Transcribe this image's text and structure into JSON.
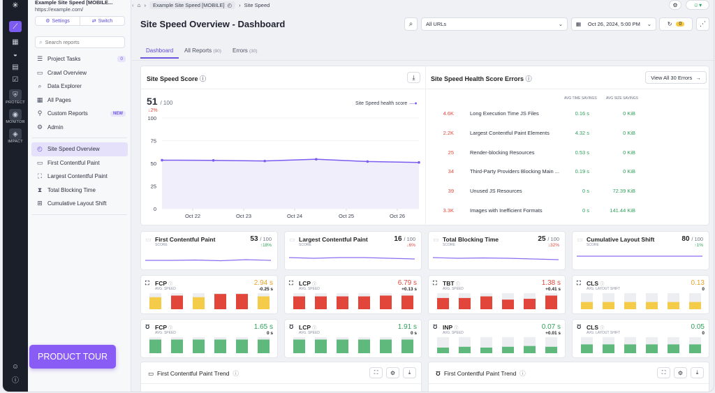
{
  "project": {
    "name": "Example Site Speed [MOBILE...",
    "url": "https://example.com/",
    "settings": "Settings",
    "switch": "Switch"
  },
  "rail": {
    "items": [
      {
        "label": "PROTECT"
      },
      {
        "label": "MONITOR"
      },
      {
        "label": "IMPACT"
      }
    ]
  },
  "search": {
    "placeholder": "Search reports"
  },
  "nav": {
    "project_tasks": "Project Tasks",
    "project_tasks_count": "0",
    "crawl_overview": "Crawl Overview",
    "data_explorer": "Data Explorer",
    "all_pages": "All Pages",
    "custom_reports": "Custom Reports",
    "custom_badge": "NEW",
    "admin": "Admin",
    "site_speed_overview": "Site Speed Overview",
    "fcp": "First Contentful Paint",
    "lcp": "Largest Contentful Paint",
    "tbt": "Total Blocking Time",
    "cls": "Cumulative Layout Shift"
  },
  "product_tour": "PRODUCT TOUR",
  "breadcrumb": {
    "b1": "Example Site Speed [MOBILE]",
    "b2": "Site Speed"
  },
  "header": {
    "title": "Site Speed Overview - Dashboard",
    "url_filter": "All URLs",
    "date": "Oct 26, 2024, 5:00 PM",
    "badge": "0"
  },
  "tabs": {
    "dashboard": "Dashboard",
    "all_reports": "All Reports",
    "all_reports_count": "(90)",
    "errors": "Errors",
    "errors_count": "(30)"
  },
  "score_panel": {
    "title": "Site Speed Score",
    "value": "51",
    "max": "/ 100",
    "delta": "2%",
    "legend": "Site Speed health score"
  },
  "chart_data": {
    "type": "line",
    "title": "Site Speed Score",
    "series": [
      {
        "name": "Site Speed health score",
        "values": [
          53.5,
          53.3,
          52.6,
          54.5,
          52,
          51
        ]
      }
    ],
    "x_positions": [
      0,
      1,
      2,
      3,
      4,
      5
    ],
    "xtick_labels": [
      "Oct 22",
      "Oct 23",
      "Oct 24",
      "Oct 25",
      "Oct 26"
    ],
    "ylim": [
      0,
      100
    ],
    "yticks": [
      0,
      25,
      50,
      75,
      100
    ]
  },
  "errors_panel": {
    "title": "Site Speed Health Score Errors",
    "view_all": "View All 30 Errors",
    "col_time": "AVG TIME SAVINGS",
    "col_size": "AVG SIZE SAVINGS",
    "rows": [
      {
        "count": "4.6K",
        "name": "Long Execution Time JS Files",
        "time": "0.16 s",
        "size": "0 KiB"
      },
      {
        "count": "2.2K",
        "name": "Largest Contentful Paint Elements",
        "time": "4.32 s",
        "size": "0 KiB"
      },
      {
        "count": "25",
        "name": "Render-blocking Resources",
        "time": "0.53 s",
        "size": "0 KiB"
      },
      {
        "count": "34",
        "name": "Third-Party Providers Blocking Main ...",
        "time": "0.19 s",
        "size": "0 KiB"
      },
      {
        "count": "39",
        "name": "Unused JS Resources",
        "time": "0 s",
        "size": "72.39 KiB"
      },
      {
        "count": "3.3K",
        "name": "Images with Inefficient Formats",
        "time": "0 s",
        "size": "141.44 KiB"
      }
    ]
  },
  "score_cards": [
    {
      "title": "First Contentful Paint",
      "sub": "SCORE",
      "value": "53",
      "max": "/ 100",
      "delta": "18%",
      "dir": "up"
    },
    {
      "title": "Largest Contentful Paint",
      "sub": "SCORE",
      "value": "16",
      "max": "/ 100",
      "delta": "6%",
      "dir": "down"
    },
    {
      "title": "Total Blocking Time",
      "sub": "SCORE",
      "value": "25",
      "max": "/ 100",
      "delta": "32%",
      "dir": "down"
    },
    {
      "title": "Cumulative Layout Shift",
      "sub": "SCORE",
      "value": "80",
      "max": "/ 100",
      "delta": "1%",
      "dir": "up"
    }
  ],
  "metric_cards": [
    {
      "label": "FCP",
      "sub": "AVG. SPEED",
      "value": "2.94 s",
      "delta": "-0.25 s",
      "color": "#e8a42a",
      "bars": [
        0.75,
        0.85,
        0.75,
        0.95,
        0.95,
        0.8
      ],
      "barcolors": [
        "#f5cb4a",
        "#e2463b",
        "#f5cb4a",
        "#e2463b",
        "#e2463b",
        "#f5cb4a"
      ]
    },
    {
      "label": "LCP",
      "sub": "AVG. SPEED",
      "value": "6.79 s",
      "delta": "+0.13 s",
      "color": "#e0483c",
      "bars": [
        0.8,
        0.8,
        0.8,
        0.8,
        0.85,
        0.85
      ],
      "barcolors": [
        "#e2463b",
        "#e2463b",
        "#e2463b",
        "#e2463b",
        "#e2463b",
        "#e2463b"
      ]
    },
    {
      "label": "TBT",
      "sub": "AVG. SPEED",
      "value": "1.38 s",
      "delta": "+0.41 s",
      "color": "#e0483c",
      "bars": [
        0.7,
        0.7,
        0.8,
        0.6,
        0.65,
        0.85
      ],
      "barcolors": [
        "#e2463b",
        "#e2463b",
        "#e2463b",
        "#e2463b",
        "#e2463b",
        "#e2463b"
      ]
    },
    {
      "label": "CLS",
      "sub": "AVG. LAYOUT SHIFT",
      "value": "0.13",
      "delta": "0",
      "color": "#e8a42a",
      "bars": [
        0.45,
        0.45,
        0.45,
        0.45,
        0.45,
        0.45
      ],
      "barcolors": [
        "#f5cb4a",
        "#f5cb4a",
        "#f5cb4a",
        "#f5cb4a",
        "#f5cb4a",
        "#f5cb4a"
      ]
    },
    {
      "label": "FCP",
      "sub": "AVG. SPEED",
      "value": "1.65 s",
      "delta": "0 s",
      "color": "#2fa15a",
      "bars": [
        0.85,
        0.85,
        0.85,
        0.85,
        0.85,
        0.85
      ],
      "barcolors": [
        "#5fb97c",
        "#5fb97c",
        "#5fb97c",
        "#5fb97c",
        "#5fb97c",
        "#5fb97c"
      ]
    },
    {
      "label": "LCP",
      "sub": "AVG. SPEED",
      "value": "1.91 s",
      "delta": "0 s",
      "color": "#2fa15a",
      "bars": [
        0.85,
        0.85,
        0.85,
        0.85,
        0.85,
        0.85
      ],
      "barcolors": [
        "#5fb97c",
        "#5fb97c",
        "#5fb97c",
        "#5fb97c",
        "#5fb97c",
        "#5fb97c"
      ]
    },
    {
      "label": "INP",
      "sub": "AVG. SPEED",
      "value": "0.07 s",
      "delta": "+0.01 s",
      "color": "#2fa15a",
      "bars": [
        0.35,
        0.4,
        0.35,
        0.4,
        0.45,
        0.4
      ],
      "barcolors": [
        "#5fb97c",
        "#5fb97c",
        "#5fb97c",
        "#5fb97c",
        "#5fb97c",
        "#5fb97c"
      ]
    },
    {
      "label": "CLS",
      "sub": "AVG. LAYOUT SHIFT",
      "value": "0.05",
      "delta": "0",
      "color": "#2fa15a",
      "bars": [
        0.55,
        0.55,
        0.55,
        0.55,
        0.55,
        0.55
      ],
      "barcolors": [
        "#5fb97c",
        "#5fb97c",
        "#5fb97c",
        "#5fb97c",
        "#5fb97c",
        "#5fb97c"
      ]
    }
  ],
  "trend": {
    "left": "First Contentful Paint Trend",
    "right": "First Contentful Paint Trend"
  }
}
